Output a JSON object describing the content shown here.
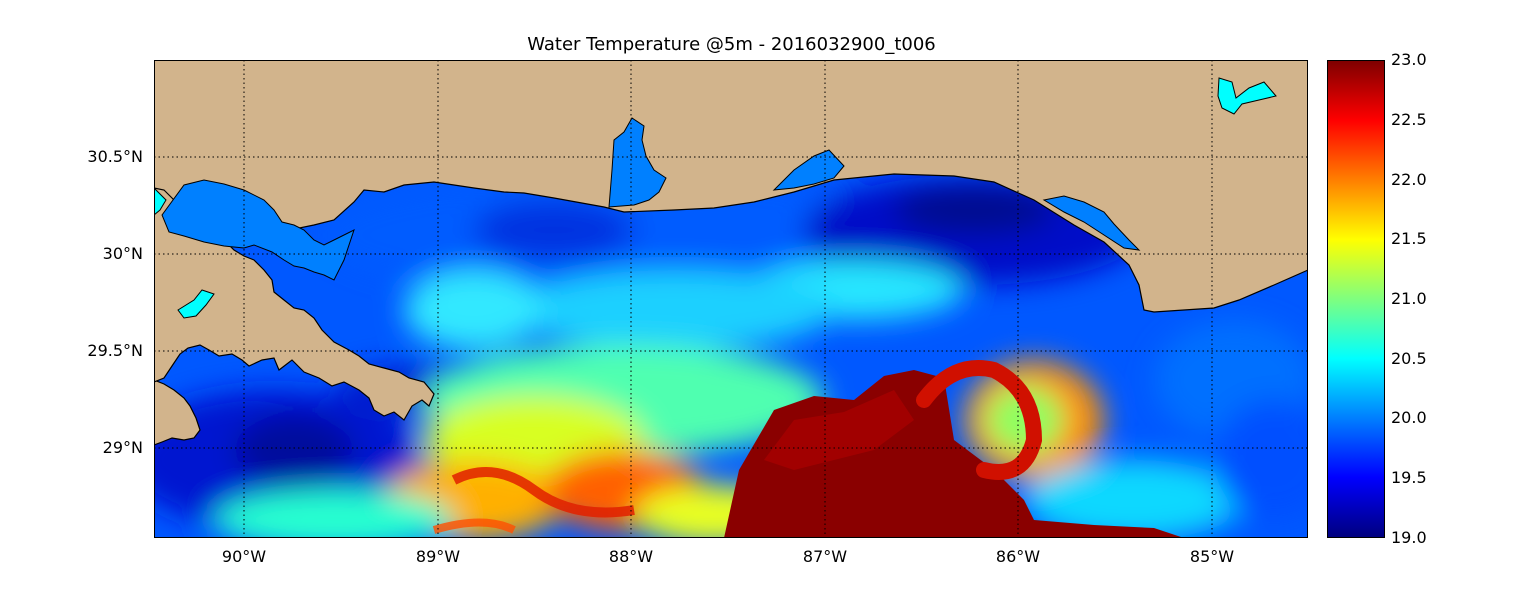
{
  "title": "Water Temperature @5m - 2016032900_t006",
  "lat_labels": [
    "30.5°N",
    "30°N",
    "29.5°N",
    "29°N"
  ],
  "lon_labels": [
    "90°W",
    "89°W",
    "88°W",
    "87°W",
    "86°W",
    "85°W"
  ],
  "colorbar": {
    "labels": [
      "23.0",
      "22.5",
      "22.0",
      "21.5",
      "21.0",
      "20.5",
      "20.0",
      "19.5",
      "19.0"
    ],
    "colormap": "jet",
    "colors": [
      "#00007f",
      "#0000ff",
      "#007fff",
      "#00ffff",
      "#7fff7f",
      "#ffff00",
      "#ff7f00",
      "#ff0000",
      "#7f0000"
    ]
  },
  "colors": {
    "land": "#d2b48c",
    "inland_water": "#007fff",
    "lake": "#00ffff",
    "coastline": "#000000",
    "grid": "#000000"
  }
}
